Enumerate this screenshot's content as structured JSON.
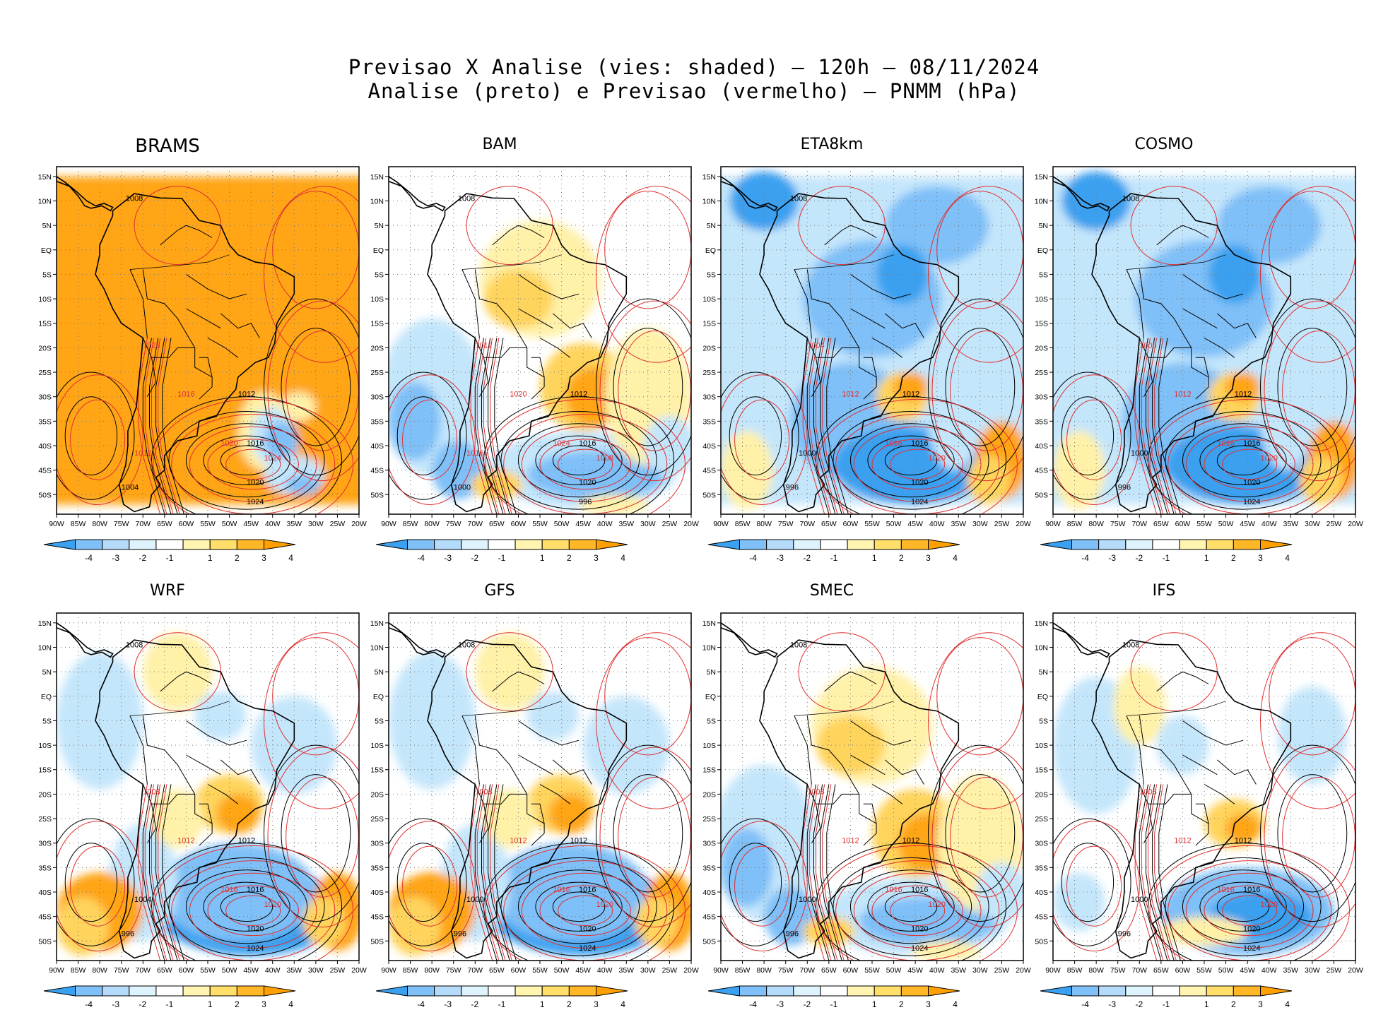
{
  "title_line1": "Previsao X Analise (vies: shaded) — 120h — 08/11/2024",
  "title_line2": "Analise (preto) e Previsao (vermelho) — PNMM (hPa)",
  "lat_labels": [
    "15N",
    "10N",
    "5N",
    "EQ",
    "5S",
    "10S",
    "15S",
    "20S",
    "25S",
    "30S",
    "35S",
    "40S",
    "45S",
    "50S"
  ],
  "lon_labels": [
    "90W",
    "85W",
    "80W",
    "75W",
    "70W",
    "65W",
    "60W",
    "55W",
    "50W",
    "45W",
    "40W",
    "35W",
    "30W",
    "25W",
    "20W"
  ],
  "colorbar": {
    "ticks": [
      "-4",
      "-3",
      "-2",
      "-1",
      "1",
      "2",
      "3",
      "4"
    ],
    "colors": [
      "#3aa0f0",
      "#7fc0f8",
      "#b4dcfa",
      "#dff3fd",
      "#ffffff",
      "#fff4b0",
      "#ffdf6a",
      "#ffb728",
      "#ffa000"
    ]
  },
  "shading_colors": {
    "neg_strong": "#3aa0f0",
    "neg_med": "#7fc0f8",
    "neg_light": "#c4e6fb",
    "pos_light": "#fff1a8",
    "pos_med": "#ffd45c",
    "pos_strong": "#ffa514"
  },
  "contour_colors": {
    "analysis": "#000000",
    "forecast": "#e03030"
  },
  "panels": [
    {
      "id": "brams",
      "name": "BRAMS",
      "bias": "warm",
      "isobars": [
        {
          "text": "1008",
          "color": "analysis"
        },
        {
          "text": "1012",
          "color": "analysis"
        },
        {
          "text": "1016",
          "color": "analysis"
        },
        {
          "text": "1020",
          "color": "analysis"
        },
        {
          "text": "1024",
          "color": "analysis"
        },
        {
          "text": "1004",
          "color": "analysis"
        },
        {
          "text": "1012",
          "color": "forecast"
        },
        {
          "text": "1016",
          "color": "forecast"
        },
        {
          "text": "1020",
          "color": "forecast"
        },
        {
          "text": "1024",
          "color": "forecast"
        },
        {
          "text": "1028",
          "color": "forecast"
        }
      ]
    },
    {
      "id": "bam",
      "name": "BAM",
      "bias": "mixed",
      "isobars": [
        {
          "text": "1008",
          "color": "analysis"
        },
        {
          "text": "1012",
          "color": "analysis"
        },
        {
          "text": "1016",
          "color": "analysis"
        },
        {
          "text": "1020",
          "color": "analysis"
        },
        {
          "text": "996",
          "color": "analysis"
        },
        {
          "text": "1000",
          "color": "analysis"
        },
        {
          "text": "1016",
          "color": "forecast"
        },
        {
          "text": "1020",
          "color": "forecast"
        },
        {
          "text": "1024",
          "color": "forecast"
        },
        {
          "text": "1008",
          "color": "forecast"
        },
        {
          "text": "1012",
          "color": "forecast"
        }
      ]
    },
    {
      "id": "eta8km",
      "name": "ETA8km",
      "bias": "cold",
      "isobars": [
        {
          "text": "1008",
          "color": "analysis"
        },
        {
          "text": "1012",
          "color": "analysis"
        },
        {
          "text": "1016",
          "color": "analysis"
        },
        {
          "text": "1020",
          "color": "analysis"
        },
        {
          "text": "1024",
          "color": "analysis"
        },
        {
          "text": "996",
          "color": "analysis"
        },
        {
          "text": "1000",
          "color": "analysis"
        },
        {
          "text": "1012",
          "color": "forecast"
        },
        {
          "text": "1016",
          "color": "forecast"
        },
        {
          "text": "1020",
          "color": "forecast"
        },
        {
          "text": "1004",
          "color": "forecast"
        }
      ]
    },
    {
      "id": "cosmo",
      "name": "COSMO",
      "bias": "cold",
      "isobars": [
        {
          "text": "1008",
          "color": "analysis"
        },
        {
          "text": "1012",
          "color": "analysis"
        },
        {
          "text": "1016",
          "color": "analysis"
        },
        {
          "text": "1020",
          "color": "analysis"
        },
        {
          "text": "1024",
          "color": "analysis"
        },
        {
          "text": "996",
          "color": "analysis"
        },
        {
          "text": "1000",
          "color": "analysis"
        },
        {
          "text": "1012",
          "color": "forecast"
        },
        {
          "text": "1016",
          "color": "forecast"
        },
        {
          "text": "1020",
          "color": "forecast"
        },
        {
          "text": "1008",
          "color": "forecast"
        }
      ]
    },
    {
      "id": "wrf",
      "name": "WRF",
      "bias": "mixed-cold",
      "isobars": [
        {
          "text": "1008",
          "color": "analysis"
        },
        {
          "text": "1012",
          "color": "analysis"
        },
        {
          "text": "1016",
          "color": "analysis"
        },
        {
          "text": "1020",
          "color": "analysis"
        },
        {
          "text": "1024",
          "color": "analysis"
        },
        {
          "text": "996",
          "color": "analysis"
        },
        {
          "text": "1004",
          "color": "analysis"
        },
        {
          "text": "1012",
          "color": "forecast"
        },
        {
          "text": "1016",
          "color": "forecast"
        },
        {
          "text": "1020",
          "color": "forecast"
        },
        {
          "text": "1008",
          "color": "forecast"
        }
      ]
    },
    {
      "id": "gfs",
      "name": "GFS",
      "bias": "mixed-cold",
      "isobars": [
        {
          "text": "1008",
          "color": "analysis"
        },
        {
          "text": "1012",
          "color": "analysis"
        },
        {
          "text": "1016",
          "color": "analysis"
        },
        {
          "text": "1020",
          "color": "analysis"
        },
        {
          "text": "1024",
          "color": "analysis"
        },
        {
          "text": "996",
          "color": "analysis"
        },
        {
          "text": "1000",
          "color": "analysis"
        },
        {
          "text": "1012",
          "color": "forecast"
        },
        {
          "text": "1016",
          "color": "forecast"
        },
        {
          "text": "1020",
          "color": "forecast"
        },
        {
          "text": "1008",
          "color": "forecast"
        }
      ]
    },
    {
      "id": "smec",
      "name": "SMEC",
      "bias": "mixed",
      "isobars": [
        {
          "text": "1008",
          "color": "analysis"
        },
        {
          "text": "1012",
          "color": "analysis"
        },
        {
          "text": "1016",
          "color": "analysis"
        },
        {
          "text": "1020",
          "color": "analysis"
        },
        {
          "text": "1024",
          "color": "analysis"
        },
        {
          "text": "996",
          "color": "analysis"
        },
        {
          "text": "1000",
          "color": "analysis"
        },
        {
          "text": "1012",
          "color": "forecast"
        },
        {
          "text": "1016",
          "color": "forecast"
        },
        {
          "text": "1020",
          "color": "forecast"
        },
        {
          "text": "1008",
          "color": "forecast"
        }
      ]
    },
    {
      "id": "ifs",
      "name": "IFS",
      "bias": "slight",
      "isobars": [
        {
          "text": "1008",
          "color": "analysis"
        },
        {
          "text": "1012",
          "color": "analysis"
        },
        {
          "text": "1016",
          "color": "analysis"
        },
        {
          "text": "1020",
          "color": "analysis"
        },
        {
          "text": "1024",
          "color": "analysis"
        },
        {
          "text": "996",
          "color": "analysis"
        },
        {
          "text": "1000",
          "color": "analysis"
        },
        {
          "text": "1012",
          "color": "forecast"
        },
        {
          "text": "1016",
          "color": "forecast"
        },
        {
          "text": "1020",
          "color": "forecast"
        },
        {
          "text": "1008",
          "color": "forecast"
        }
      ]
    }
  ]
}
